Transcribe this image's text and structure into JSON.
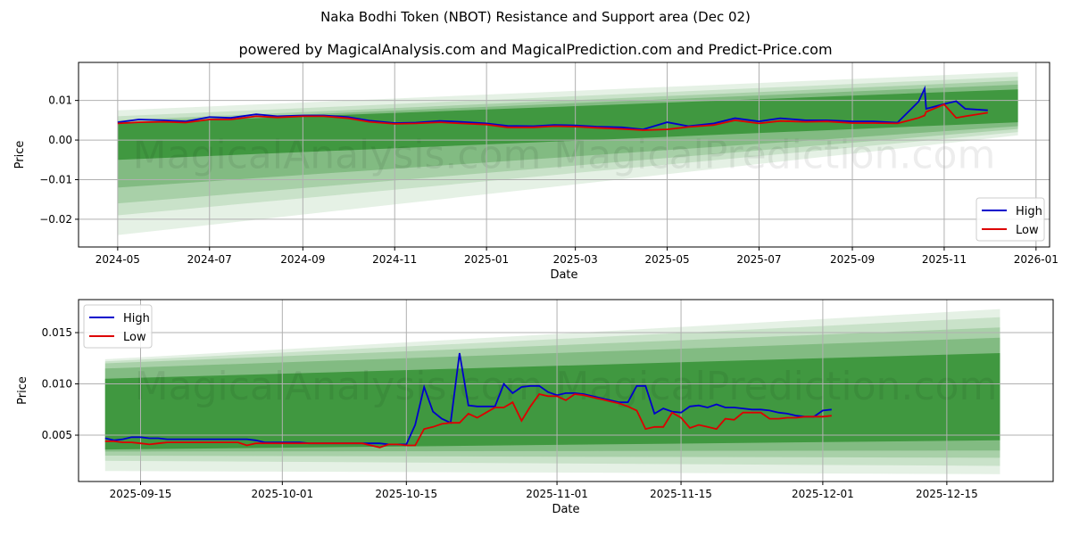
{
  "title": "Naka Bodhi Token (NBOT) Resistance and Support area (Dec 02)",
  "subtitle": "powered by MagicalAnalysis.com and MagicalPrediction.com and Predict-Price.com",
  "watermark": "MagicalAnalysis.com    MagicalPrediction.com",
  "colors": {
    "high": "#0000cc",
    "low": "#dd0000",
    "band": "#2a8c2a"
  },
  "chart_data": [
    {
      "type": "line",
      "xlabel": "Date",
      "ylabel": "Price",
      "xlim": [
        "2024-04-05",
        "2026-01-10"
      ],
      "ylim": [
        -0.027,
        0.0196
      ],
      "grid": true,
      "legend": {
        "placement": "lower-right",
        "entries": [
          "High",
          "Low"
        ]
      },
      "x_ticks": [
        {
          "date": "2024-05-01",
          "label": "2024-05"
        },
        {
          "date": "2024-07-01",
          "label": "2024-07"
        },
        {
          "date": "2024-09-01",
          "label": "2024-09"
        },
        {
          "date": "2024-11-01",
          "label": "2024-11"
        },
        {
          "date": "2025-01-01",
          "label": "2025-01"
        },
        {
          "date": "2025-03-01",
          "label": "2025-03"
        },
        {
          "date": "2025-05-01",
          "label": "2025-05"
        },
        {
          "date": "2025-07-01",
          "label": "2025-07"
        },
        {
          "date": "2025-09-01",
          "label": "2025-09"
        },
        {
          "date": "2025-11-01",
          "label": "2025-11"
        },
        {
          "date": "2026-01-01",
          "label": "2026-01"
        }
      ],
      "y_ticks": [
        {
          "value": 0.01,
          "label": "0.01"
        },
        {
          "value": 0,
          "label": "0.00"
        },
        {
          "value": -0.01,
          "label": "−0.01"
        },
        {
          "value": -0.02,
          "label": "−0.02"
        }
      ],
      "bands": {
        "start": "2024-05-01",
        "end": "2025-12-20",
        "layers": [
          {
            "start": [
              -0.024,
              0.0075
            ],
            "end": [
              0.0012,
              0.0172
            ],
            "alpha": 0.12
          },
          {
            "start": [
              -0.019,
              0.006
            ],
            "end": [
              0.002,
              0.016
            ],
            "alpha": 0.15
          },
          {
            "start": [
              -0.016,
              0.005
            ],
            "end": [
              0.0028,
              0.015
            ],
            "alpha": 0.2
          },
          {
            "start": [
              -0.012,
              0.0045
            ],
            "end": [
              0.0035,
              0.014
            ],
            "alpha": 0.3
          },
          {
            "start": [
              -0.005,
              0.0042
            ],
            "end": [
              0.0045,
              0.0128
            ],
            "alpha": 0.75
          }
        ]
      },
      "series": [
        {
          "name": "High",
          "points": [
            [
              "2024-05-01",
              0.0045
            ],
            [
              "2024-05-15",
              0.0052
            ],
            [
              "2024-06-01",
              0.005
            ],
            [
              "2024-06-15",
              0.0047
            ],
            [
              "2024-07-01",
              0.0058
            ],
            [
              "2024-07-15",
              0.0056
            ],
            [
              "2024-08-01",
              0.0065
            ],
            [
              "2024-08-15",
              0.006
            ],
            [
              "2024-09-01",
              0.0062
            ],
            [
              "2024-09-15",
              0.0062
            ],
            [
              "2024-10-01",
              0.0058
            ],
            [
              "2024-10-15",
              0.0049
            ],
            [
              "2024-11-01",
              0.0043
            ],
            [
              "2024-11-15",
              0.0044
            ],
            [
              "2024-12-01",
              0.0048
            ],
            [
              "2024-12-15",
              0.0046
            ],
            [
              "2025-01-01",
              0.0042
            ],
            [
              "2025-01-15",
              0.0036
            ],
            [
              "2025-02-01",
              0.0035
            ],
            [
              "2025-02-15",
              0.0038
            ],
            [
              "2025-03-01",
              0.0037
            ],
            [
              "2025-03-15",
              0.0034
            ],
            [
              "2025-04-01",
              0.0032
            ],
            [
              "2025-04-15",
              0.0027
            ],
            [
              "2025-05-01",
              0.0045
            ],
            [
              "2025-05-15",
              0.0035
            ],
            [
              "2025-06-01",
              0.0042
            ],
            [
              "2025-06-15",
              0.0055
            ],
            [
              "2025-07-01",
              0.0047
            ],
            [
              "2025-07-15",
              0.0055
            ],
            [
              "2025-08-01",
              0.005
            ],
            [
              "2025-08-15",
              0.005
            ],
            [
              "2025-09-01",
              0.0047
            ],
            [
              "2025-09-15",
              0.0047
            ],
            [
              "2025-10-01",
              0.0044
            ],
            [
              "2025-10-15",
              0.0097
            ],
            [
              "2025-10-19",
              0.013
            ],
            [
              "2025-10-20",
              0.0079
            ],
            [
              "2025-11-01",
              0.0091
            ],
            [
              "2025-11-09",
              0.0098
            ],
            [
              "2025-11-15",
              0.0079
            ],
            [
              "2025-11-30",
              0.0075
            ]
          ]
        },
        {
          "name": "Low",
          "points": [
            [
              "2024-05-01",
              0.0042
            ],
            [
              "2024-05-15",
              0.0045
            ],
            [
              "2024-06-01",
              0.0046
            ],
            [
              "2024-06-15",
              0.0044
            ],
            [
              "2024-07-01",
              0.0052
            ],
            [
              "2024-07-15",
              0.0052
            ],
            [
              "2024-08-01",
              0.006
            ],
            [
              "2024-08-15",
              0.0057
            ],
            [
              "2024-09-01",
              0.006
            ],
            [
              "2024-09-15",
              0.006
            ],
            [
              "2024-10-01",
              0.0055
            ],
            [
              "2024-10-15",
              0.0046
            ],
            [
              "2024-11-01",
              0.0041
            ],
            [
              "2024-11-15",
              0.0042
            ],
            [
              "2024-12-01",
              0.0045
            ],
            [
              "2024-12-15",
              0.0042
            ],
            [
              "2025-01-01",
              0.0039
            ],
            [
              "2025-01-15",
              0.0032
            ],
            [
              "2025-02-01",
              0.0032
            ],
            [
              "2025-02-15",
              0.0035
            ],
            [
              "2025-03-01",
              0.0034
            ],
            [
              "2025-03-15",
              0.0031
            ],
            [
              "2025-04-01",
              0.0028
            ],
            [
              "2025-04-15",
              0.0025
            ],
            [
              "2025-05-01",
              0.0027
            ],
            [
              "2025-05-15",
              0.0033
            ],
            [
              "2025-06-01",
              0.0038
            ],
            [
              "2025-06-15",
              0.005
            ],
            [
              "2025-07-01",
              0.0042
            ],
            [
              "2025-07-15",
              0.0048
            ],
            [
              "2025-08-01",
              0.0046
            ],
            [
              "2025-08-15",
              0.0047
            ],
            [
              "2025-09-01",
              0.0043
            ],
            [
              "2025-09-15",
              0.0043
            ],
            [
              "2025-10-01",
              0.0042
            ],
            [
              "2025-10-15",
              0.0056
            ],
            [
              "2025-10-19",
              0.0062
            ],
            [
              "2025-10-20",
              0.0071
            ],
            [
              "2025-11-01",
              0.009
            ],
            [
              "2025-11-09",
              0.0056
            ],
            [
              "2025-11-15",
              0.006
            ],
            [
              "2025-11-30",
              0.0069
            ]
          ]
        }
      ]
    },
    {
      "type": "line",
      "xlabel": "Date",
      "ylabel": "Price",
      "xlim": [
        "2025-09-08",
        "2025-12-27"
      ],
      "ylim": [
        0.00048,
        0.01822
      ],
      "grid": true,
      "legend": {
        "placement": "upper-left",
        "entries": [
          "High",
          "Low"
        ]
      },
      "x_ticks": [
        {
          "date": "2025-09-15",
          "label": "2025-09-15"
        },
        {
          "date": "2025-10-01",
          "label": "2025-10-01"
        },
        {
          "date": "2025-10-15",
          "label": "2025-10-15"
        },
        {
          "date": "2025-11-01",
          "label": "2025-11-01"
        },
        {
          "date": "2025-11-15",
          "label": "2025-11-15"
        },
        {
          "date": "2025-12-01",
          "label": "2025-12-01"
        },
        {
          "date": "2025-12-15",
          "label": "2025-12-15"
        }
      ],
      "y_ticks": [
        {
          "value": 0.015,
          "label": "0.015"
        },
        {
          "value": 0.01,
          "label": "0.010"
        },
        {
          "value": 0.005,
          "label": "0.005"
        }
      ],
      "bands": {
        "start": "2025-09-11",
        "end": "2025-12-21",
        "layers": [
          {
            "start": [
              0.0015,
              0.0124
            ],
            "end": [
              0.0012,
              0.0173
            ],
            "alpha": 0.12
          },
          {
            "start": [
              0.0025,
              0.0122
            ],
            "end": [
              0.002,
              0.0165
            ],
            "alpha": 0.15
          },
          {
            "start": [
              0.003,
              0.012
            ],
            "end": [
              0.0028,
              0.0155
            ],
            "alpha": 0.2
          },
          {
            "start": [
              0.0034,
              0.0115
            ],
            "end": [
              0.0035,
              0.0145
            ],
            "alpha": 0.3
          },
          {
            "start": [
              0.0036,
              0.0105
            ],
            "end": [
              0.0045,
              0.013
            ],
            "alpha": 0.75
          }
        ]
      },
      "series": [
        {
          "name": "High",
          "start_date": "2025-09-11",
          "daily": [
            0.0047,
            0.0045,
            0.0046,
            0.0048,
            0.0048,
            0.0047,
            0.0047,
            0.0046,
            0.0046,
            0.0046,
            0.0046,
            0.0046,
            0.0046,
            0.0046,
            0.0046,
            0.0046,
            0.0046,
            0.0045,
            0.0043,
            0.0043,
            0.0043,
            0.0043,
            0.0043,
            0.0042,
            0.0042,
            0.0042,
            0.0042,
            0.0042,
            0.0042,
            0.0042,
            0.0042,
            0.0042,
            0.0041,
            0.0041,
            0.0041,
            0.006,
            0.0097,
            0.0073,
            0.0066,
            0.0062,
            0.013,
            0.0079,
            0.0078,
            0.0078,
            0.0078,
            0.01,
            0.0091,
            0.0097,
            0.0098,
            0.0098,
            0.0092,
            0.0089,
            0.0091,
            0.0091,
            0.009,
            0.0088,
            0.0086,
            0.0084,
            0.0082,
            0.0082,
            0.0098,
            0.0098,
            0.0071,
            0.0076,
            0.0073,
            0.0072,
            0.0078,
            0.0079,
            0.0077,
            0.008,
            0.0077,
            0.0077,
            0.0076,
            0.0075,
            0.0075,
            0.0074,
            0.0072,
            0.0071,
            0.0069,
            0.0068,
            0.0068,
            0.0074,
            0.0075
          ]
        },
        {
          "name": "Low",
          "start_date": "2025-09-11",
          "daily": [
            0.0044,
            0.0044,
            0.0043,
            0.0043,
            0.0042,
            0.0041,
            0.0042,
            0.0043,
            0.0043,
            0.0043,
            0.0043,
            0.0043,
            0.0043,
            0.0043,
            0.0043,
            0.0043,
            0.004,
            0.0042,
            0.0042,
            0.0042,
            0.0042,
            0.0042,
            0.0042,
            0.0042,
            0.0042,
            0.0042,
            0.0042,
            0.0042,
            0.0042,
            0.0042,
            0.004,
            0.0038,
            0.0041,
            0.0041,
            0.004,
            0.004,
            0.0056,
            0.0058,
            0.0061,
            0.0062,
            0.0062,
            0.0071,
            0.0067,
            0.0072,
            0.0077,
            0.0077,
            0.0082,
            0.0064,
            0.0078,
            0.009,
            0.0088,
            0.0088,
            0.0084,
            0.009,
            0.0089,
            0.0087,
            0.0085,
            0.0083,
            0.0081,
            0.0078,
            0.0074,
            0.0056,
            0.0058,
            0.0058,
            0.0072,
            0.0067,
            0.0057,
            0.006,
            0.0058,
            0.0056,
            0.0066,
            0.0065,
            0.0072,
            0.0072,
            0.0072,
            0.0066,
            0.0066,
            0.0067,
            0.0067,
            0.0068,
            0.0068,
            0.0068,
            0.0069
          ]
        }
      ]
    }
  ]
}
